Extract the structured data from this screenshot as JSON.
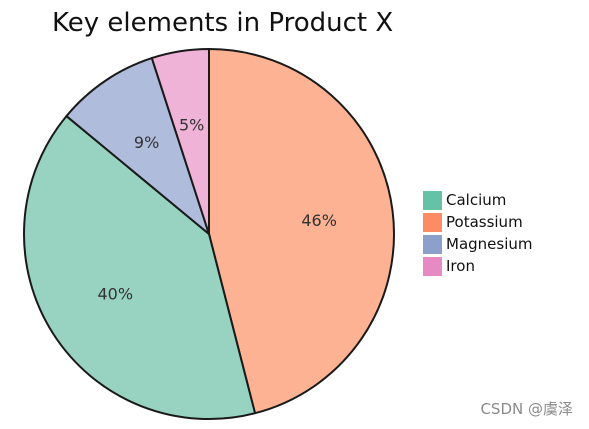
{
  "chart_data": {
    "type": "pie",
    "title": "Key elements in Product X",
    "categories": [
      "Calcium",
      "Potassium",
      "Magnesium",
      "Iron"
    ],
    "values": [
      40,
      46,
      9,
      5
    ],
    "labels": [
      "40%",
      "46%",
      "9%",
      "5%"
    ],
    "colors": [
      "#66c2a5",
      "#fc8d62",
      "#8da0cb",
      "#e78ac3"
    ],
    "slice_colors": [
      "#97d3c0",
      "#fdb293",
      "#afbcdb",
      "#efb3d8"
    ],
    "start_angle": 90,
    "direction": "clockwise",
    "legend": "right"
  },
  "watermark": "CSDN @虞泽"
}
